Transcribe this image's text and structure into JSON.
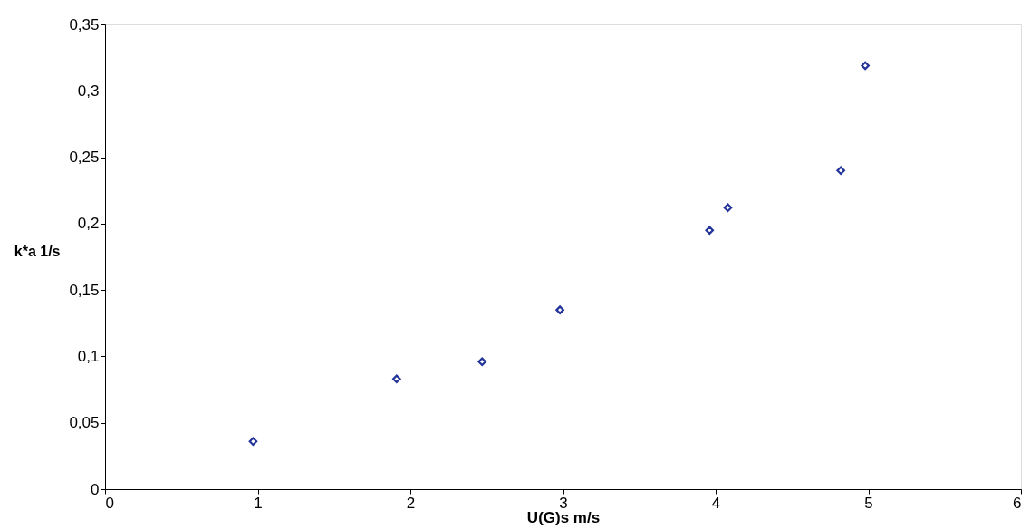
{
  "chart_data": {
    "type": "scatter",
    "xlabel": "U(G)s  m/s",
    "ylabel": "k*a  1/s",
    "x": [
      0.97,
      1.91,
      2.47,
      2.98,
      3.96,
      4.08,
      4.82,
      4.98
    ],
    "series": [
      {
        "color": "#22349a",
        "values": [
          0.036,
          0.083,
          0.096,
          0.135,
          0.195,
          0.212,
          0.24,
          0.319
        ]
      }
    ],
    "xlim": [
      0,
      6
    ],
    "xticks": [
      0,
      1,
      2,
      3,
      4,
      5,
      6
    ],
    "ylim": [
      0,
      0.35
    ],
    "yticks": [
      0,
      {
        "value": 0.05,
        "label": "0,05"
      },
      {
        "value": 0.1,
        "label": "0,1"
      },
      {
        "value": 0.15,
        "label": "0,15"
      },
      {
        "value": 0.2,
        "label": "0,2"
      },
      {
        "value": 0.25,
        "label": "0,25"
      },
      {
        "value": 0.3,
        "label": "0,3"
      },
      {
        "value": 0.35,
        "label": "0,35"
      }
    ],
    "marker": "diamond",
    "grid": false
  }
}
